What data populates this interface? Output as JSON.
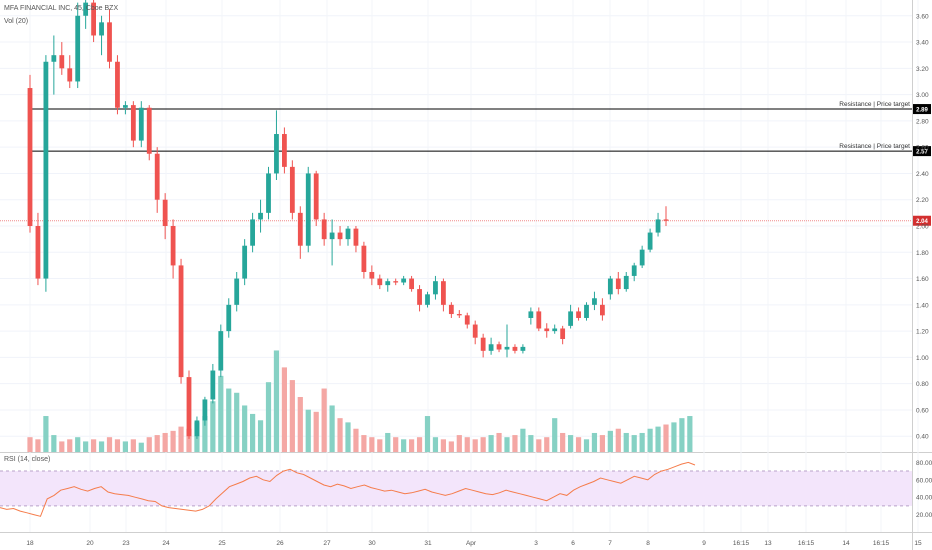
{
  "header": {
    "symbol_line": "MFA FINANCIAL INC, 45, Cboe BZX",
    "volume_label": "Vol (20)",
    "rsi_label": "RSI (14, close)"
  },
  "colors": {
    "up": "#26a69a",
    "down": "#ef5350",
    "vol_up": "#86d1c4",
    "vol_down": "#f4a7a4",
    "rsi_line": "#f57c4b",
    "rsi_band": "#f3e5fb",
    "last_price": "#d32f2f",
    "resistance": "#000000"
  },
  "chart_data": [
    {
      "type": "candlestick",
      "price_axis": {
        "min": 0.28,
        "max": 3.72,
        "ticks": [
          0.4,
          0.6,
          0.8,
          1.0,
          1.2,
          1.4,
          1.6,
          1.8,
          2.0,
          2.2,
          2.4,
          2.6,
          2.8,
          3.0,
          3.2,
          3.4,
          3.6
        ]
      },
      "price_tick_labels": [
        "0.40",
        "0.60",
        "0.80",
        "1.00",
        "1.20",
        "1.40",
        "1.60",
        "1.80",
        "2.00",
        "2.20",
        "2.40",
        "2.60",
        "2.80",
        "3.00",
        "3.20",
        "3.40",
        "3.60"
      ],
      "x_axis_labels": [
        "18",
        "20",
        "23",
        "24",
        "25",
        "26",
        "27",
        "30",
        "31",
        "Apr",
        "3",
        "6",
        "7",
        "8",
        "9",
        "16:15",
        "13",
        "16:15",
        "14",
        "16:15",
        "15"
      ],
      "resistance_lines": [
        {
          "label": "Resistance | Price target",
          "value": 2.89,
          "tag": "2.89"
        },
        {
          "label": "Resistance | Price target",
          "value": 2.57,
          "tag": "2.57"
        }
      ],
      "last_price": {
        "value": 2.04,
        "tag": "2.04"
      },
      "candles": [
        {
          "o": 3.05,
          "h": 3.15,
          "l": 1.95,
          "c": 2.0
        },
        {
          "o": 2.0,
          "h": 2.1,
          "l": 1.55,
          "c": 1.6
        },
        {
          "o": 1.6,
          "h": 3.3,
          "l": 1.5,
          "c": 3.25
        },
        {
          "o": 3.25,
          "h": 3.45,
          "l": 3.0,
          "c": 3.3
        },
        {
          "o": 3.3,
          "h": 3.4,
          "l": 3.15,
          "c": 3.2
        },
        {
          "o": 3.2,
          "h": 3.3,
          "l": 3.05,
          "c": 3.1
        },
        {
          "o": 3.1,
          "h": 3.7,
          "l": 3.05,
          "c": 3.6
        },
        {
          "o": 3.6,
          "h": 3.75,
          "l": 3.5,
          "c": 3.7
        },
        {
          "o": 3.7,
          "h": 3.75,
          "l": 3.4,
          "c": 3.45
        },
        {
          "o": 3.45,
          "h": 3.6,
          "l": 3.3,
          "c": 3.55
        },
        {
          "o": 3.55,
          "h": 3.65,
          "l": 3.2,
          "c": 3.25
        },
        {
          "o": 3.25,
          "h": 3.3,
          "l": 2.85,
          "c": 2.9
        },
        {
          "o": 2.9,
          "h": 2.95,
          "l": 2.85,
          "c": 2.92
        },
        {
          "o": 2.92,
          "h": 2.95,
          "l": 2.6,
          "c": 2.65
        },
        {
          "o": 2.65,
          "h": 2.95,
          "l": 2.6,
          "c": 2.9
        },
        {
          "o": 2.9,
          "h": 2.92,
          "l": 2.5,
          "c": 2.55
        },
        {
          "o": 2.55,
          "h": 2.6,
          "l": 2.1,
          "c": 2.2
        },
        {
          "o": 2.2,
          "h": 2.25,
          "l": 1.9,
          "c": 2.0
        },
        {
          "o": 2.0,
          "h": 2.05,
          "l": 1.6,
          "c": 1.7
        },
        {
          "o": 1.7,
          "h": 1.75,
          "l": 0.8,
          "c": 0.85
        },
        {
          "o": 0.85,
          "h": 0.9,
          "l": 0.38,
          "c": 0.4
        },
        {
          "o": 0.4,
          "h": 0.55,
          "l": 0.38,
          "c": 0.52
        },
        {
          "o": 0.52,
          "h": 0.7,
          "l": 0.48,
          "c": 0.68
        },
        {
          "o": 0.68,
          "h": 0.95,
          "l": 0.65,
          "c": 0.9
        },
        {
          "o": 0.9,
          "h": 1.25,
          "l": 0.85,
          "c": 1.2
        },
        {
          "o": 1.2,
          "h": 1.45,
          "l": 1.15,
          "c": 1.4
        },
        {
          "o": 1.4,
          "h": 1.65,
          "l": 1.35,
          "c": 1.6
        },
        {
          "o": 1.6,
          "h": 1.9,
          "l": 1.55,
          "c": 1.85
        },
        {
          "o": 1.85,
          "h": 2.1,
          "l": 1.8,
          "c": 2.05
        },
        {
          "o": 2.05,
          "h": 2.2,
          "l": 1.95,
          "c": 2.1
        },
        {
          "o": 2.1,
          "h": 2.45,
          "l": 2.05,
          "c": 2.4
        },
        {
          "o": 2.4,
          "h": 2.88,
          "l": 2.35,
          "c": 2.7
        },
        {
          "o": 2.7,
          "h": 2.75,
          "l": 2.4,
          "c": 2.45
        },
        {
          "o": 2.45,
          "h": 2.5,
          "l": 2.05,
          "c": 2.1
        },
        {
          "o": 2.1,
          "h": 2.15,
          "l": 1.75,
          "c": 1.85
        },
        {
          "o": 1.85,
          "h": 2.45,
          "l": 1.8,
          "c": 2.4
        },
        {
          "o": 2.4,
          "h": 2.42,
          "l": 2.0,
          "c": 2.05
        },
        {
          "o": 2.05,
          "h": 2.1,
          "l": 1.85,
          "c": 1.9
        },
        {
          "o": 1.9,
          "h": 2.05,
          "l": 1.7,
          "c": 1.95
        },
        {
          "o": 1.95,
          "h": 2.0,
          "l": 1.85,
          "c": 1.9
        },
        {
          "o": 1.9,
          "h": 2.0,
          "l": 1.85,
          "c": 1.98
        },
        {
          "o": 1.98,
          "h": 2.0,
          "l": 1.8,
          "c": 1.85
        },
        {
          "o": 1.85,
          "h": 1.88,
          "l": 1.6,
          "c": 1.65
        },
        {
          "o": 1.65,
          "h": 1.7,
          "l": 1.55,
          "c": 1.6
        },
        {
          "o": 1.6,
          "h": 1.63,
          "l": 1.52,
          "c": 1.55
        },
        {
          "o": 1.55,
          "h": 1.6,
          "l": 1.5,
          "c": 1.58
        },
        {
          "o": 1.58,
          "h": 1.6,
          "l": 1.55,
          "c": 1.57
        },
        {
          "o": 1.57,
          "h": 1.62,
          "l": 1.55,
          "c": 1.6
        },
        {
          "o": 1.6,
          "h": 1.62,
          "l": 1.5,
          "c": 1.52
        },
        {
          "o": 1.52,
          "h": 1.55,
          "l": 1.35,
          "c": 1.4
        },
        {
          "o": 1.4,
          "h": 1.5,
          "l": 1.38,
          "c": 1.48
        },
        {
          "o": 1.48,
          "h": 1.62,
          "l": 1.44,
          "c": 1.58
        },
        {
          "o": 1.58,
          "h": 1.6,
          "l": 1.35,
          "c": 1.4
        },
        {
          "o": 1.4,
          "h": 1.42,
          "l": 1.3,
          "c": 1.33
        },
        {
          "o": 1.33,
          "h": 1.36,
          "l": 1.3,
          "c": 1.32
        },
        {
          "o": 1.32,
          "h": 1.34,
          "l": 1.22,
          "c": 1.25
        },
        {
          "o": 1.25,
          "h": 1.28,
          "l": 1.1,
          "c": 1.15
        },
        {
          "o": 1.15,
          "h": 1.18,
          "l": 1.0,
          "c": 1.05
        },
        {
          "o": 1.05,
          "h": 1.15,
          "l": 1.02,
          "c": 1.1
        },
        {
          "o": 1.1,
          "h": 1.12,
          "l": 1.04,
          "c": 1.06
        },
        {
          "o": 1.06,
          "h": 1.25,
          "l": 1.0,
          "c": 1.08
        },
        {
          "o": 1.08,
          "h": 1.1,
          "l": 1.03,
          "c": 1.05
        },
        {
          "o": 1.05,
          "h": 1.1,
          "l": 1.03,
          "c": 1.08
        },
        {
          "o": 1.3,
          "h": 1.38,
          "l": 1.25,
          "c": 1.35
        },
        {
          "o": 1.35,
          "h": 1.38,
          "l": 1.2,
          "c": 1.22
        },
        {
          "o": 1.22,
          "h": 1.26,
          "l": 1.15,
          "c": 1.2
        },
        {
          "o": 1.2,
          "h": 1.25,
          "l": 1.18,
          "c": 1.22
        },
        {
          "o": 1.22,
          "h": 1.24,
          "l": 1.1,
          "c": 1.14
        },
        {
          "o": 1.24,
          "h": 1.4,
          "l": 1.22,
          "c": 1.35
        },
        {
          "o": 1.35,
          "h": 1.38,
          "l": 1.28,
          "c": 1.3
        },
        {
          "o": 1.3,
          "h": 1.42,
          "l": 1.28,
          "c": 1.4
        },
        {
          "o": 1.4,
          "h": 1.5,
          "l": 1.36,
          "c": 1.45
        },
        {
          "o": 1.4,
          "h": 1.45,
          "l": 1.28,
          "c": 1.32
        },
        {
          "o": 1.48,
          "h": 1.62,
          "l": 1.44,
          "c": 1.6
        },
        {
          "o": 1.6,
          "h": 1.65,
          "l": 1.48,
          "c": 1.52
        },
        {
          "o": 1.52,
          "h": 1.65,
          "l": 1.5,
          "c": 1.62
        },
        {
          "o": 1.62,
          "h": 1.72,
          "l": 1.58,
          "c": 1.7
        },
        {
          "o": 1.7,
          "h": 1.85,
          "l": 1.68,
          "c": 1.82
        },
        {
          "o": 1.82,
          "h": 1.98,
          "l": 1.8,
          "c": 1.95
        },
        {
          "o": 1.95,
          "h": 2.1,
          "l": 1.92,
          "c": 2.05
        },
        {
          "o": 2.05,
          "h": 2.15,
          "l": 2.0,
          "c": 2.04
        }
      ]
    },
    {
      "type": "bar",
      "volume": [
        0.35,
        0.3,
        0.85,
        0.4,
        0.25,
        0.3,
        0.35,
        0.25,
        0.3,
        0.25,
        0.35,
        0.3,
        0.25,
        0.3,
        0.22,
        0.35,
        0.4,
        0.45,
        0.5,
        0.6,
        0.55,
        0.7,
        0.85,
        1.2,
        1.8,
        1.5,
        1.4,
        1.1,
        0.9,
        0.75,
        1.65,
        2.4,
        2.0,
        1.7,
        1.3,
        1.0,
        0.95,
        1.5,
        1.1,
        0.8,
        0.7,
        0.55,
        0.4,
        0.35,
        0.3,
        0.45,
        0.35,
        0.3,
        0.3,
        0.35,
        0.85,
        0.35,
        0.3,
        0.25,
        0.4,
        0.35,
        0.3,
        0.35,
        0.4,
        0.45,
        0.35,
        0.4,
        0.55,
        0.4,
        0.3,
        0.35,
        0.8,
        0.45,
        0.4,
        0.35,
        0.3,
        0.45,
        0.4,
        0.5,
        0.55,
        0.45,
        0.4,
        0.45,
        0.55,
        0.6,
        0.65,
        0.7,
        0.8,
        0.85
      ],
      "volume_max": 2.6
    },
    {
      "type": "line",
      "series": [
        {
          "values": [
            28,
            26,
            27,
            24,
            22,
            20,
            18,
            38,
            42,
            48,
            50,
            52,
            49,
            47,
            50,
            52,
            46,
            44,
            43,
            42,
            40,
            38,
            36,
            35,
            30,
            28,
            27,
            26,
            25,
            24,
            26,
            30,
            38,
            45,
            52,
            55,
            58,
            62,
            64,
            60,
            58,
            65,
            70,
            72,
            68,
            66,
            62,
            58,
            54,
            52,
            55,
            53,
            50,
            52,
            54,
            51,
            49,
            47,
            48,
            46,
            44,
            45,
            47,
            49,
            46,
            44,
            42,
            44,
            47,
            50,
            48,
            46,
            44,
            43,
            45,
            48,
            46,
            44,
            42,
            40,
            38,
            36,
            40,
            44,
            42,
            48,
            52,
            55,
            58,
            62,
            60,
            58,
            56,
            60,
            64,
            62,
            60,
            66,
            70,
            72,
            75,
            78,
            80,
            77
          ]
        }
      ],
      "ylim": [
        0,
        85
      ],
      "y_ticks": [
        20,
        40,
        60,
        80
      ],
      "y_tick_labels": [
        "20.00",
        "40.00",
        "60.00",
        "80.00"
      ],
      "band": [
        30,
        70
      ]
    }
  ]
}
